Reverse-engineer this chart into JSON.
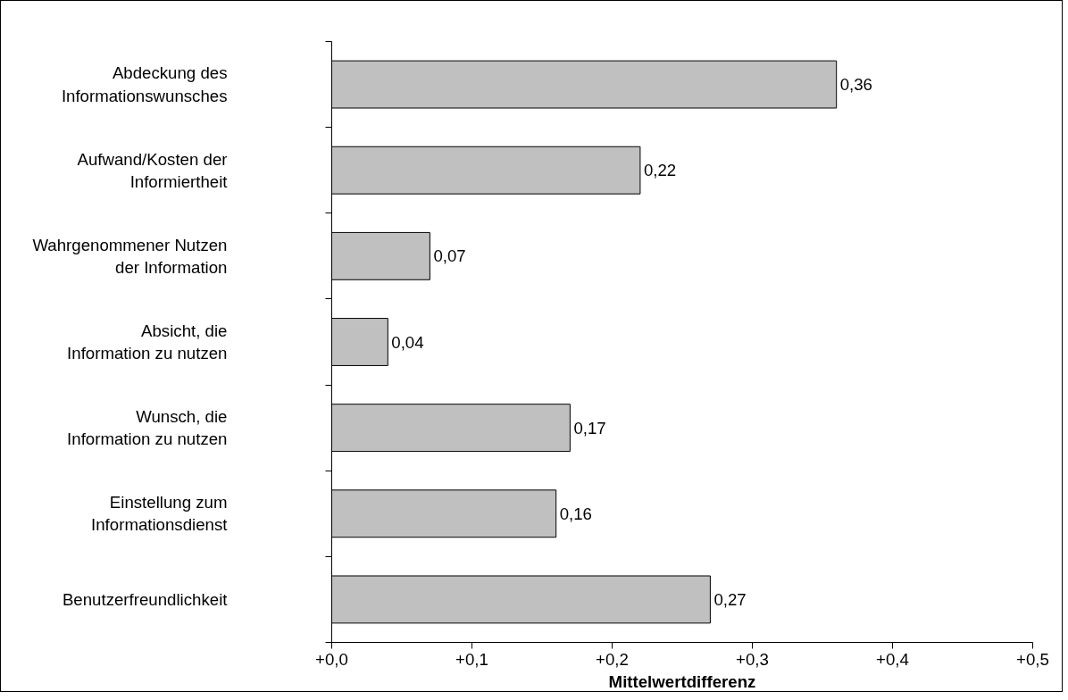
{
  "chart_data": {
    "type": "bar",
    "orientation": "horizontal",
    "xlabel": "Mittelwertdifferenz",
    "categories": [
      "Abdeckung des Informationswunsches",
      "Aufwand/Kosten der Informiertheit",
      "Wahrgenommener Nutzen der Information",
      "Absicht, die Information zu nutzen",
      "Wunsch, die Information zu nutzen",
      "Einstellung zum Informationsdienst",
      "Benutzerfreundlichkeit"
    ],
    "values": [
      0.36,
      0.22,
      0.07,
      0.04,
      0.17,
      0.16,
      0.27
    ],
    "value_labels": [
      "0,36",
      "0,22",
      "0,07",
      "0,04",
      "0,17",
      "0,16",
      "0,27"
    ],
    "color": "#c0c0c0",
    "xlim": [
      0,
      0.5
    ],
    "xticks": [
      {
        "value": 0,
        "label": "+0,0"
      },
      {
        "value": 0.1,
        "label": "+0,1"
      },
      {
        "value": 0.2,
        "label": "+0,2"
      },
      {
        "value": 0.3,
        "label": "+0,3"
      },
      {
        "value": 0.4,
        "label": "+0,4"
      },
      {
        "value": 0.5,
        "label": "+0,5"
      }
    ],
    "grid": false
  }
}
